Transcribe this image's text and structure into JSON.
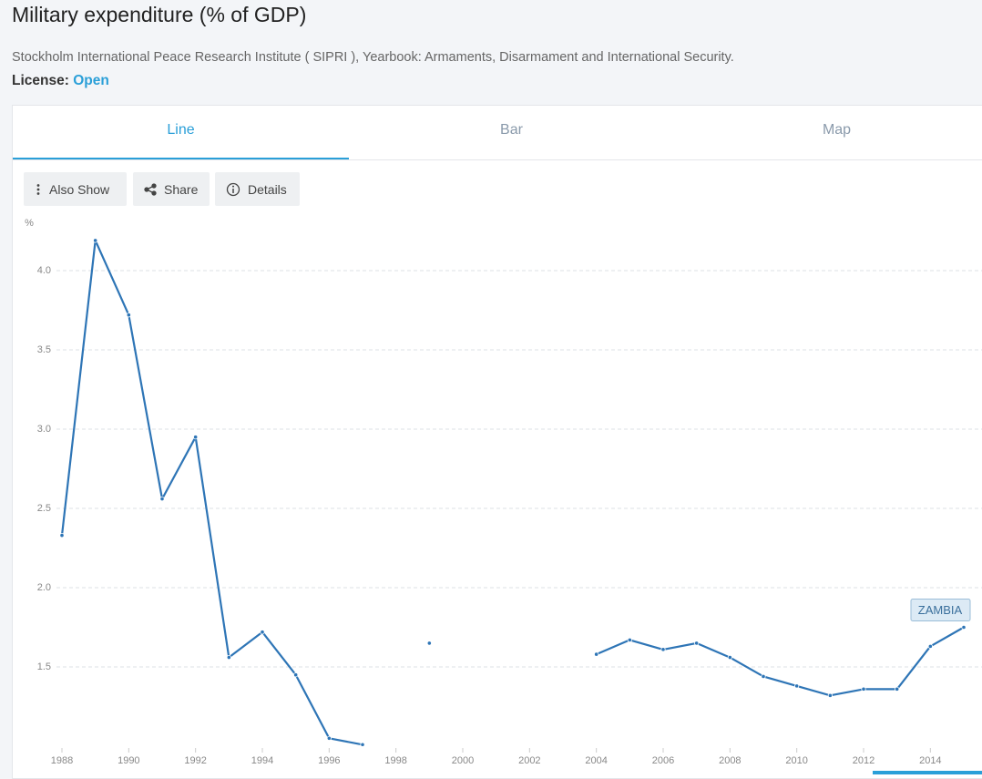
{
  "header": {
    "title": "Military expenditure (% of GDP)",
    "source": "Stockholm International Peace Research Institute ( SIPRI ), Yearbook: Armaments, Disarmament and International Security.",
    "license_label": "License:",
    "license_value": "Open"
  },
  "tabs": [
    "Line",
    "Bar",
    "Map"
  ],
  "buttons": [
    "Also Show",
    "Share",
    "Details"
  ],
  "chart_data": {
    "type": "line",
    "y_label": "%",
    "x": [
      1988,
      1989,
      1990,
      1991,
      1992,
      1993,
      1994,
      1995,
      1996,
      1997,
      1998,
      1999,
      2000,
      2001,
      2002,
      2003,
      2004,
      2005,
      2006,
      2007,
      2008,
      2009,
      2010,
      2011,
      2012,
      2013,
      2014,
      2015
    ],
    "series": [
      {
        "name": "ZAMBIA",
        "color": "#2e75b6",
        "values": [
          2.33,
          4.19,
          3.72,
          2.56,
          2.95,
          1.56,
          1.72,
          1.45,
          1.05,
          1.01,
          null,
          1.65,
          null,
          null,
          null,
          null,
          1.58,
          1.67,
          1.61,
          1.65,
          1.56,
          1.44,
          1.38,
          1.32,
          1.36,
          1.36,
          1.63,
          1.75
        ]
      }
    ],
    "xlim": [
      1988,
      2015
    ],
    "xticks": [
      1988,
      1990,
      1992,
      1994,
      1996,
      1998,
      2000,
      2002,
      2004,
      2006,
      2008,
      2010,
      2012,
      2014
    ],
    "ylim": [
      1.0,
      4.25
    ],
    "yticks": [
      1.5,
      {
        "value": 2,
        "label": "2.0"
      },
      2.5,
      {
        "value": 3,
        "label": "3.0"
      },
      3.5,
      {
        "value": 4,
        "label": "4.0"
      }
    ],
    "grid": true
  }
}
